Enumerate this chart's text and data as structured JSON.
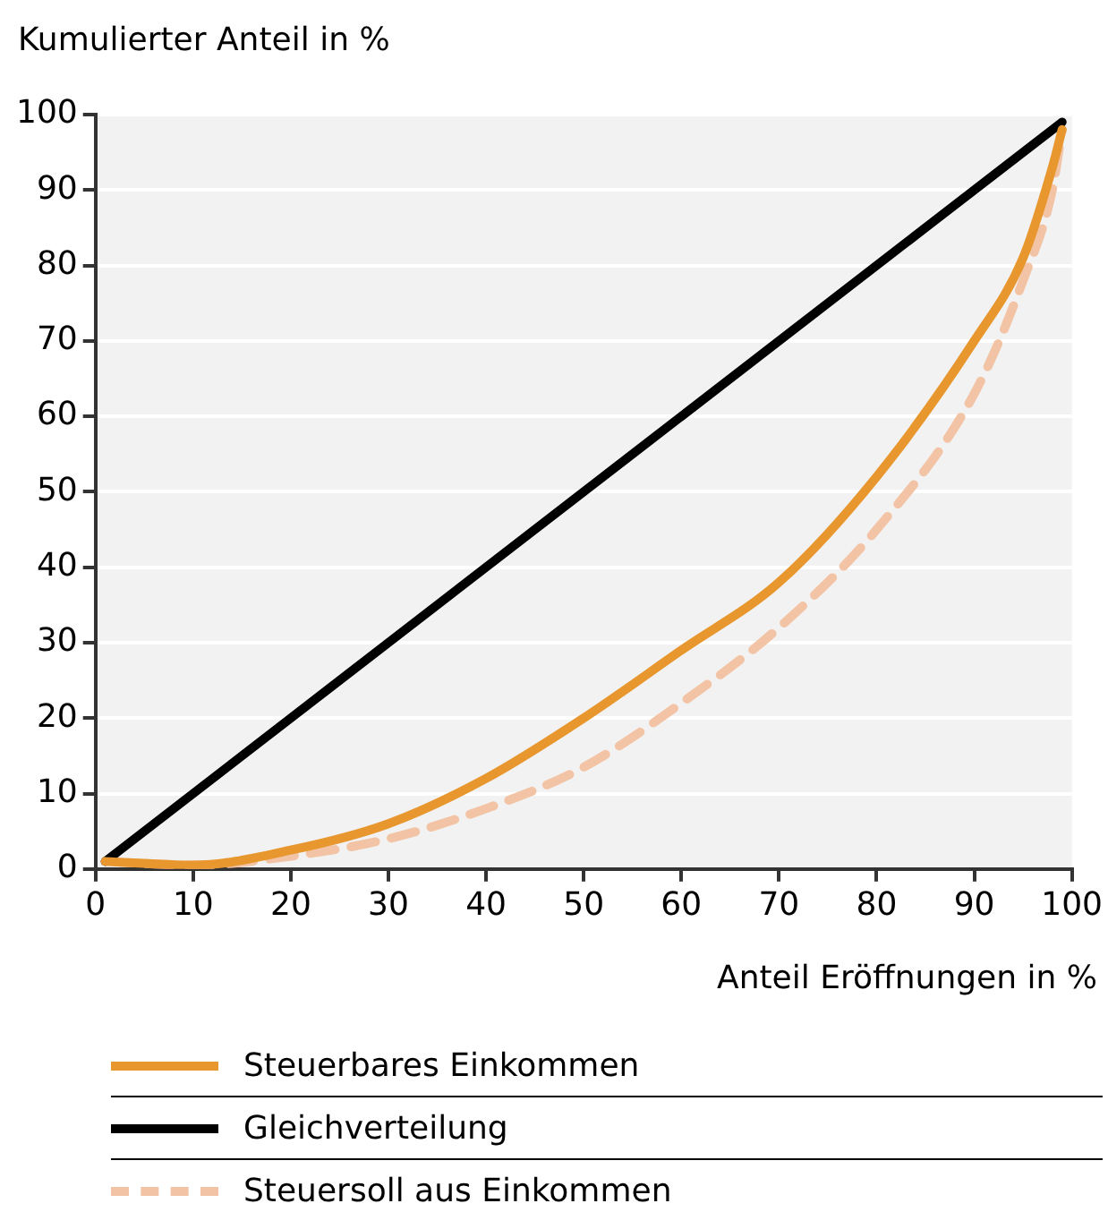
{
  "chart_data": {
    "type": "line",
    "ylabel": "Kumulierter Anteil in %",
    "xlabel": "Anteil Eröffnungen in %",
    "xlim": [
      0,
      100
    ],
    "xticks": [
      0,
      10,
      20,
      30,
      40,
      50,
      60,
      70,
      80,
      90,
      100
    ],
    "ylim": [
      0,
      100
    ],
    "yticks": [
      0,
      10,
      20,
      30,
      40,
      50,
      60,
      70,
      80,
      90,
      100
    ],
    "grid": "y",
    "legend": "bottom",
    "marker": "none",
    "series": [
      {
        "name": "Steuerbares Einkommen",
        "color": "#e8962e",
        "x": [
          1,
          10,
          20,
          30,
          40,
          50,
          60,
          70,
          80,
          90,
          95,
          98,
          99
        ],
        "values": [
          1,
          0.5,
          2.5,
          6,
          12,
          20,
          29,
          38,
          52,
          70,
          81,
          93,
          98
        ]
      },
      {
        "name": "Gleichverteilung",
        "color": "#000000",
        "x": [
          1,
          99
        ],
        "values": [
          1,
          99
        ]
      },
      {
        "name": "Steuersoll aus Einkommen",
        "color": "#f2c4a5",
        "line_style": "dashed",
        "x": [
          1,
          10,
          20,
          30,
          40,
          50,
          60,
          70,
          80,
          90,
          95,
          98,
          99
        ],
        "values": [
          1,
          0.5,
          1.7,
          4,
          8,
          13.5,
          22,
          32,
          45,
          63,
          78,
          90,
          98
        ]
      }
    ]
  }
}
